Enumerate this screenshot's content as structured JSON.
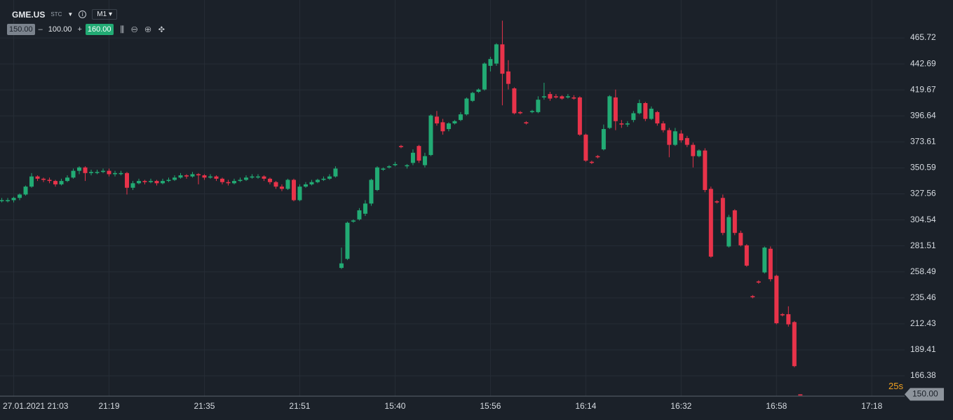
{
  "header": {
    "symbol": "GME.US",
    "market": "STC",
    "timeframe": "M1",
    "volume_low": "150.00",
    "volume_step": "100.00",
    "volume_high": "160.00"
  },
  "chart_data": {
    "type": "candlestick",
    "open": [
      322,
      322,
      322,
      324,
      327,
      334,
      343,
      341,
      340,
      339,
      336,
      339,
      342,
      348,
      351,
      346,
      347,
      347,
      348,
      345,
      346,
      346,
      333,
      337,
      339,
      338,
      339,
      337,
      339,
      340,
      342,
      344,
      343,
      345,
      344,
      342,
      343,
      341,
      338,
      337,
      339,
      340,
      342,
      343,
      343,
      341,
      338,
      334,
      332,
      340,
      322,
      334,
      336,
      338,
      340,
      341,
      343,
      262,
      270,
      303,
      305,
      310,
      319,
      331,
      349,
      351,
      353,
      370,
      352,
      355,
      370,
      353,
      362,
      396,
      391,
      385,
      390,
      393,
      398,
      410,
      418,
      420,
      441,
      443,
      460,
      436,
      421,
      400,
      391,
      400,
      400,
      413,
      416,
      414,
      414,
      413,
      413,
      413,
      380,
      356,
      361,
      367,
      386,
      413,
      390,
      389,
      393,
      399,
      408,
      394,
      400,
      390,
      384,
      371,
      381,
      377,
      371,
      361,
      366,
      332,
      321,
      324,
      281,
      313,
      293,
      282,
      237,
      250,
      258,
      279,
      255,
      221,
      221,
      214,
      150
    ],
    "high": [
      324,
      324,
      325,
      328,
      335,
      346,
      344,
      342,
      342,
      340,
      341,
      344,
      350,
      352,
      352,
      349,
      349,
      350,
      350,
      348,
      348,
      347,
      339,
      341,
      340,
      341,
      340,
      341,
      342,
      344,
      346,
      345,
      347,
      346,
      345,
      345,
      344,
      342,
      340,
      341,
      342,
      344,
      345,
      345,
      344,
      342,
      339,
      336,
      341,
      341,
      336,
      338,
      340,
      341,
      343,
      345,
      352,
      280,
      303,
      305,
      315,
      322,
      341,
      352,
      351,
      353,
      356,
      371,
      354,
      367,
      371,
      364,
      398,
      401,
      394,
      391,
      393,
      400,
      413,
      418,
      421,
      444,
      449,
      461,
      481,
      446,
      422,
      401,
      392,
      402,
      414,
      426,
      418,
      416,
      415,
      416,
      415,
      414,
      381,
      357,
      362,
      389,
      415,
      420,
      393,
      392,
      401,
      411,
      409,
      405,
      401,
      392,
      386,
      386,
      384,
      379,
      373,
      367,
      368,
      334,
      322,
      327,
      309,
      314,
      295,
      283,
      238,
      251,
      281,
      281,
      256,
      222,
      228,
      215,
      150
    ],
    "low": [
      320,
      320,
      320,
      322,
      326,
      333,
      339,
      338,
      337,
      334,
      335,
      338,
      341,
      345,
      339,
      344,
      345,
      346,
      343,
      343,
      344,
      327,
      331,
      336,
      336,
      337,
      335,
      336,
      338,
      339,
      341,
      341,
      342,
      336,
      340,
      341,
      339,
      336,
      335,
      336,
      338,
      339,
      341,
      341,
      339,
      336,
      332,
      330,
      331,
      321,
      321,
      333,
      335,
      337,
      339,
      340,
      342,
      261,
      269,
      302,
      304,
      308,
      317,
      330,
      348,
      350,
      352,
      368,
      350,
      353,
      355,
      351,
      361,
      388,
      380,
      383,
      389,
      392,
      397,
      409,
      417,
      419,
      436,
      441,
      406,
      420,
      398,
      398,
      389,
      399,
      399,
      411,
      410,
      412,
      411,
      412,
      411,
      379,
      356,
      354,
      359,
      366,
      385,
      384,
      386,
      387,
      391,
      398,
      392,
      393,
      388,
      382,
      360,
      370,
      373,
      369,
      351,
      360,
      329,
      271,
      319,
      291,
      280,
      291,
      281,
      263,
      235,
      248,
      257,
      250,
      212,
      219,
      210,
      174,
      149
    ],
    "close": [
      322,
      322,
      324,
      327,
      334,
      343,
      341,
      340,
      339,
      336,
      339,
      342,
      348,
      351,
      346,
      347,
      347,
      348,
      345,
      346,
      346,
      333,
      337,
      339,
      338,
      339,
      337,
      339,
      340,
      342,
      344,
      343,
      345,
      344,
      342,
      343,
      341,
      338,
      337,
      339,
      340,
      342,
      343,
      343,
      341,
      338,
      334,
      332,
      340,
      322,
      334,
      336,
      338,
      340,
      341,
      343,
      350,
      266,
      302,
      304,
      313,
      319,
      340,
      351,
      350,
      352,
      354,
      369,
      353,
      364,
      357,
      361,
      397,
      390,
      383,
      390,
      392,
      398,
      412,
      417,
      420,
      443,
      447,
      460,
      434,
      425,
      399,
      399,
      390,
      401,
      411,
      414,
      412,
      413,
      412,
      414,
      412,
      380,
      357,
      355,
      360,
      385,
      414,
      392,
      389,
      390,
      399,
      408,
      394,
      403,
      390,
      384,
      371,
      383,
      375,
      371,
      361,
      366,
      331,
      272,
      320,
      293,
      307,
      293,
      282,
      264,
      236,
      249,
      280,
      252,
      213,
      220,
      212,
      175,
      149
    ],
    "up_color": "#22ab74",
    "down_color": "#e8334a",
    "ylim": [
      148.4,
      499.3
    ],
    "yticks": [
      465.72,
      442.69,
      419.67,
      396.64,
      373.61,
      350.59,
      327.56,
      304.54,
      281.51,
      258.49,
      235.46,
      212.43,
      189.41,
      166.38
    ],
    "xlim": [
      -0.3,
      151.5
    ],
    "xticks": [
      {
        "value": 2,
        "label": "27.01.2021 21:03"
      },
      {
        "value": 18,
        "label": "21:19"
      },
      {
        "value": 34,
        "label": "21:35"
      },
      {
        "value": 50,
        "label": "21:51"
      },
      {
        "value": 66,
        "label": "15:40"
      },
      {
        "value": 82,
        "label": "15:56"
      },
      {
        "value": 98,
        "label": "16:14"
      },
      {
        "value": 114,
        "label": "16:32"
      },
      {
        "value": 130,
        "label": "16:58"
      },
      {
        "value": 146,
        "label": "17:18"
      }
    ],
    "grid": true,
    "countdown": "25s",
    "last_price": {
      "value": 150,
      "label": "150.00"
    }
  }
}
